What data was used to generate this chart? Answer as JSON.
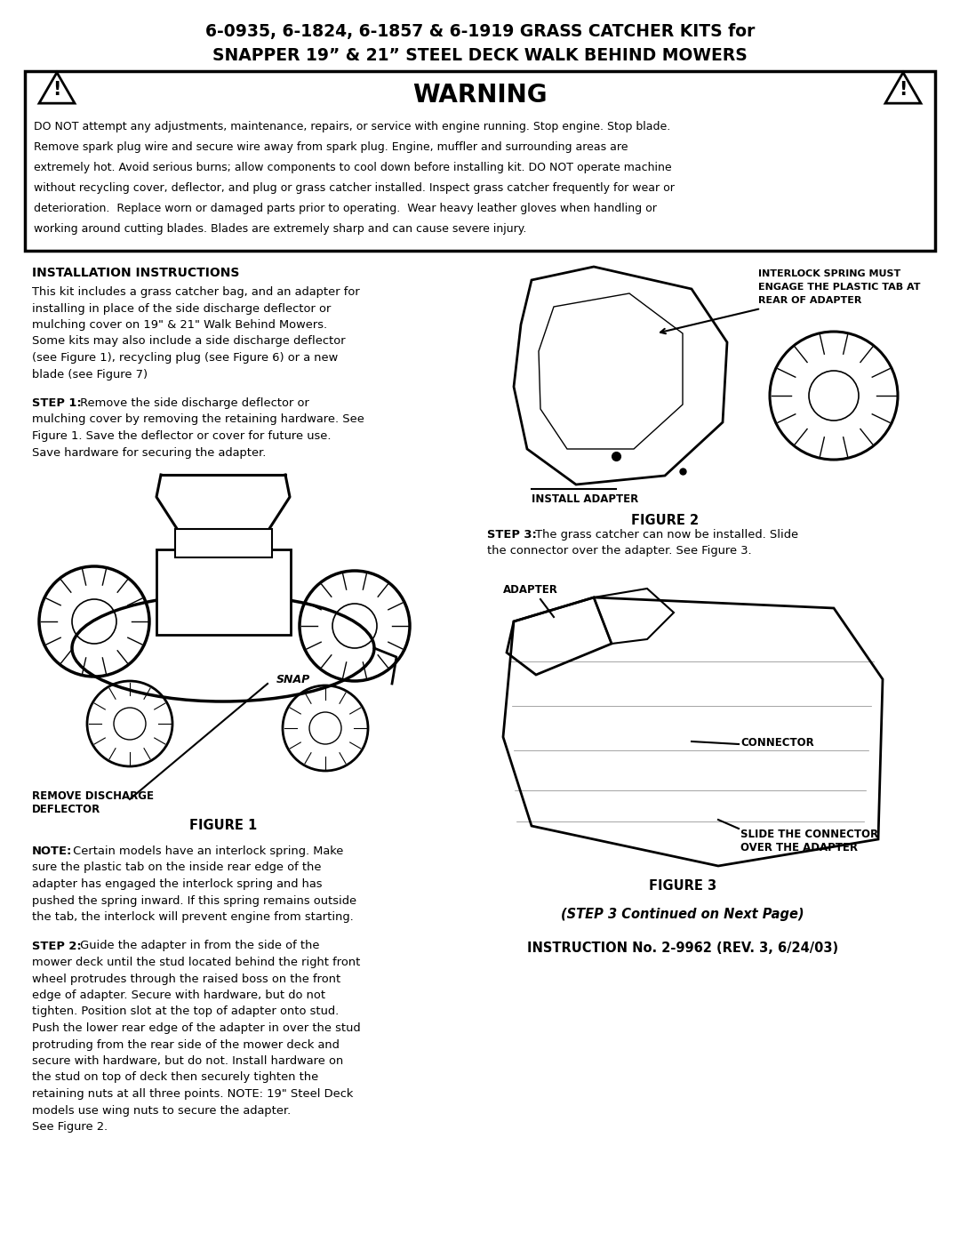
{
  "title_line1": "6-0935, 6-1824, 6-1857 & 6-1919 GRASS CATCHER KITS for",
  "title_line2": "SNAPPER 19” & 21” STEEL DECK WALK BEHIND MOWERS",
  "warning_title": "WARNING",
  "warning_text_lines": [
    "DO NOT attempt any adjustments, maintenance, repairs, or service with engine running. Stop engine. Stop blade.",
    "Remove spark plug wire and secure wire away from spark plug. Engine, muffler and surrounding areas are",
    "extremely hot. Avoid serious burns; allow components to cool down before installing kit. DO NOT operate machine",
    "without recycling cover, deflector, and plug or grass catcher installed. Inspect grass catcher frequently for wear or",
    "deterioration.  Replace worn or damaged parts prior to operating.  Wear heavy leather gloves when handling or",
    "working around cutting blades. Blades are extremely sharp and can cause severe injury."
  ],
  "section_title": "INSTALLATION INSTRUCTIONS",
  "install_text_lines": [
    "This kit includes a grass catcher bag, and an adapter for",
    "installing in place of the side discharge deflector or",
    "mulching cover on 19\" & 21\" Walk Behind Mowers.",
    "Some kits may also include a side discharge deflector",
    "(see Figure 1), recycling plug (see Figure 6) or a new",
    "blade (see Figure 7)"
  ],
  "step1_bold": "STEP 1:",
  "step1_text_lines": [
    " Remove the side discharge deflector or",
    "mulching cover by removing the retaining hardware. See",
    "Figure 1. Save the deflector or cover for future use.",
    "Save hardware for securing the adapter."
  ],
  "fig1_label": "FIGURE 1",
  "fig1_cap1": "REMOVE DISCHARGE",
  "fig1_cap2": "DEFLECTOR",
  "fig2_label": "FIGURE 2",
  "fig2_cap_interlock_lines": [
    "INTERLOCK SPRING MUST",
    "ENGAGE THE PLASTIC TAB AT",
    "REAR OF ADAPTER"
  ],
  "fig2_cap_install": "INSTALL ADAPTER",
  "note_bold": "NOTE:",
  "note_text_lines": [
    " Certain models have an interlock spring. Make",
    "sure the plastic tab on the inside rear edge of the",
    "adapter has engaged the interlock spring and has",
    "pushed the spring inward. If this spring remains outside",
    "the tab, the interlock will prevent engine from starting."
  ],
  "step2_bold": "STEP 2:",
  "step2_text_lines": [
    " Guide the adapter in from the side of the",
    "mower deck until the stud located behind the right front",
    "wheel protrudes through the raised boss on the front",
    "edge of adapter. Secure with hardware, but do not",
    "tighten. Position slot at the top of adapter onto stud.",
    "Push the lower rear edge of the adapter in over the stud",
    "protruding from the rear side of the mower deck and",
    "secure with hardware, but do not. Install hardware on",
    "the stud on top of deck then securely tighten the",
    "retaining nuts at all three points. NOTE: 19\" Steel Deck",
    "models use wing nuts to secure the adapter.",
    "See Figure 2."
  ],
  "step3_bold": "STEP 3:",
  "step3_text_lines": [
    " The grass catcher can now be installed. Slide",
    "the connector over the adapter. See Figure 3."
  ],
  "fig3_label": "FIGURE 3",
  "fig3_cap_adapter": "ADAPTER",
  "fig3_cap_connector": "CONNECTOR",
  "fig3_cap_slide_lines": [
    "SLIDE THE CONNECTOR",
    "OVER THE ADAPTER"
  ],
  "step3_continued": "(STEP 3 Continued on Next Page)",
  "instruction_no": "INSTRUCTION No. 2-9962 (REV. 3, 6/24/03)",
  "bg_color": "#ffffff",
  "text_color": "#000000"
}
